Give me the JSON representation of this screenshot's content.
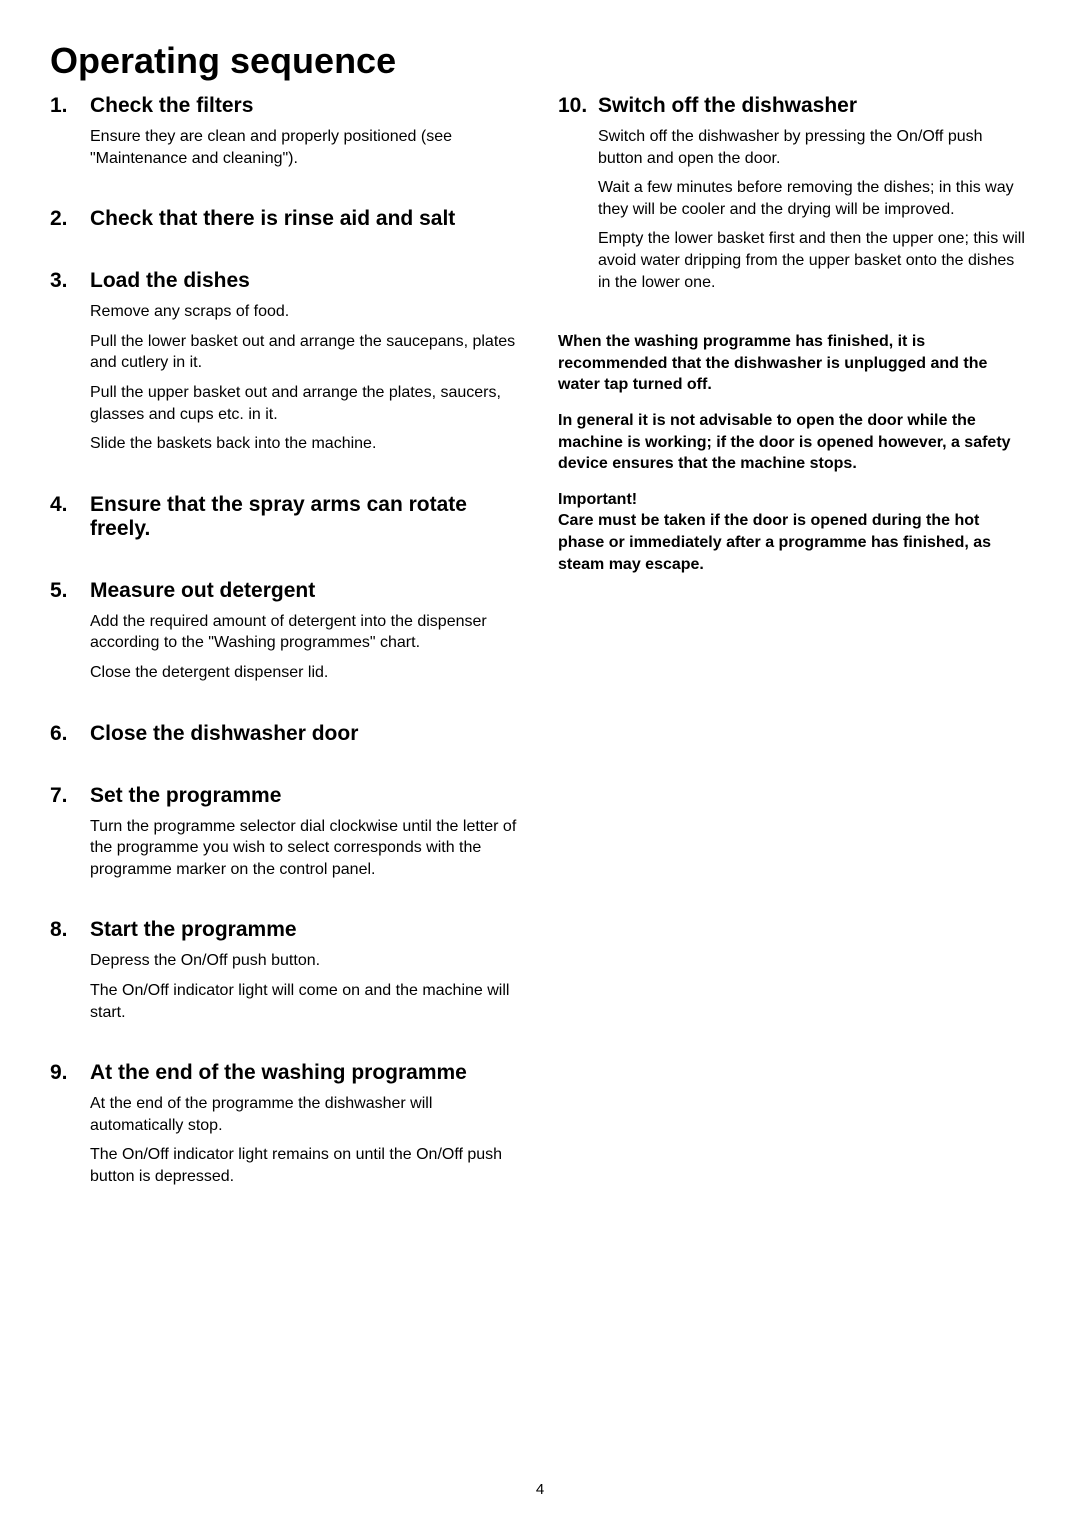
{
  "title": "Operating sequence",
  "page_number": "4",
  "left_column": [
    {
      "number": "1.",
      "title": "Check the filters",
      "paragraphs": [
        "Ensure they are clean and properly positioned (see \"Maintenance and cleaning\")."
      ]
    },
    {
      "number": "2.",
      "title": "Check that there is rinse aid and salt",
      "paragraphs": []
    },
    {
      "number": "3.",
      "title": "Load the dishes",
      "paragraphs": [
        "Remove any scraps of food.",
        "Pull the lower basket out and arrange the saucepans, plates and cutlery in it.",
        "Pull the upper basket out and arrange the plates, saucers, glasses and cups etc. in it.",
        "Slide the baskets back into the machine."
      ]
    },
    {
      "number": "4.",
      "title": "Ensure that the spray arms can rotate freely.",
      "paragraphs": []
    },
    {
      "number": "5.",
      "title": "Measure out detergent",
      "paragraphs": [
        "Add the required amount of detergent into the dispenser according to the \"Washing programmes\" chart.",
        "Close the detergent dispenser lid."
      ]
    },
    {
      "number": "6.",
      "title": "Close the dishwasher door",
      "paragraphs": []
    },
    {
      "number": "7.",
      "title": "Set the programme",
      "paragraphs": [
        "Turn the programme selector dial clockwise until the letter of the programme you wish to select corresponds with the programme marker on the control panel."
      ]
    },
    {
      "number": "8.",
      "title": "Start the programme",
      "paragraphs": [
        "Depress the On/Off push button.",
        "The On/Off indicator light will come on and the machine will start."
      ]
    },
    {
      "number": "9.",
      "title": "At the end of the washing programme",
      "paragraphs": [
        "At the end of the programme the dishwasher will automatically stop.",
        "The On/Off indicator light remains on until the On/Off push button is depressed."
      ]
    }
  ],
  "right_column": [
    {
      "number": "10.",
      "title": "Switch off the dishwasher",
      "paragraphs": [
        "Switch off the dishwasher by pressing the On/Off push button and open the door.",
        "Wait a few minutes before removing the dishes; in this way they will be cooler and the drying will be improved.",
        "Empty the lower basket first and then the upper one; this will avoid water dripping from the upper basket onto the dishes in the lower one."
      ]
    }
  ],
  "notes": [
    "When the washing programme has finished, it is recommended that the dishwasher is unplugged and the water tap turned off.",
    "In general it is not advisable to open the door while the machine is working; if the door is opened however, a safety device ensures that the machine stops.",
    "Important!\nCare must be taken if the door is opened during the hot phase or immediately after a programme has finished, as steam may escape."
  ]
}
